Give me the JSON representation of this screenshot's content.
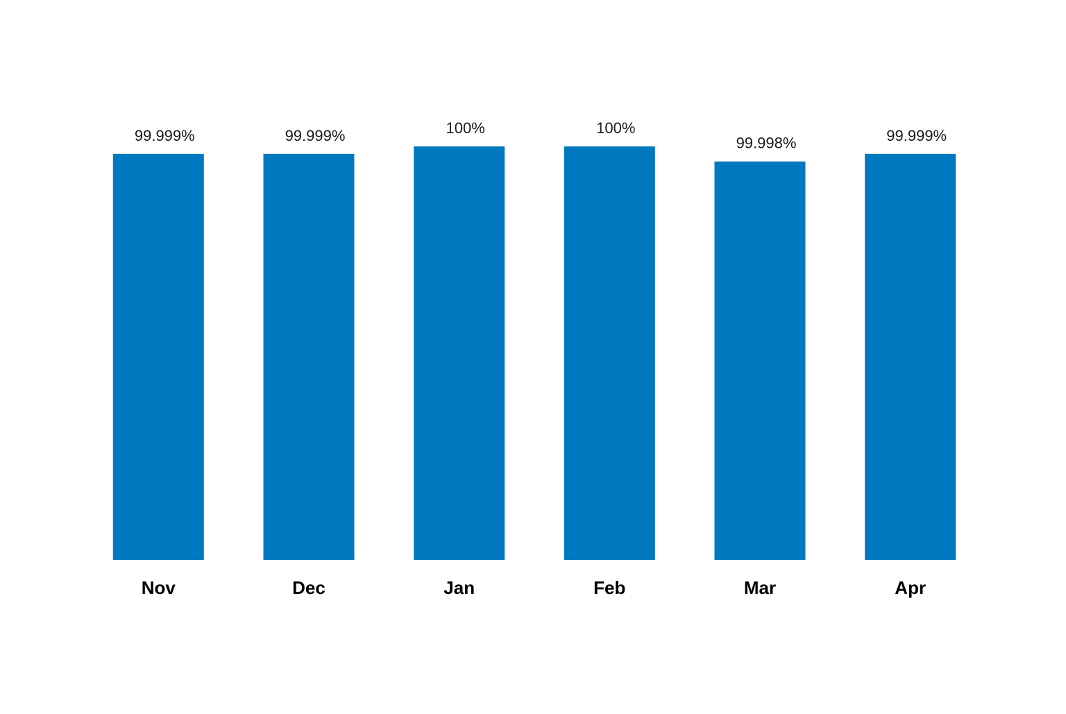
{
  "chart_data": {
    "type": "bar",
    "title": "",
    "xlabel": "",
    "ylabel": "",
    "categories": [
      "Nov",
      "Dec",
      "Jan",
      "Feb",
      "Mar",
      "Apr"
    ],
    "values": [
      99.999,
      99.999,
      100,
      100,
      99.998,
      99.999
    ],
    "data_labels": [
      "99.999%",
      "99.999%",
      "100%",
      "100%",
      "99.998%",
      "99.999%"
    ],
    "ylim": [
      99.945,
      100
    ],
    "grid": false,
    "legend": "none",
    "colors": {
      "bar": "#0079C1",
      "label_text": "#1a1a1a",
      "category_text": "#000000"
    }
  }
}
